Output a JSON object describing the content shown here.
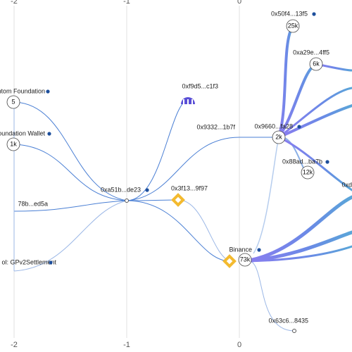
{
  "axis_top": [
    "-2",
    "-1",
    "0"
  ],
  "axis_bottom": [
    "-2",
    "-1",
    "0"
  ],
  "nodes": [
    {
      "label": "ntom Foundation",
      "badge": "5"
    },
    {
      "label": "oundation Wallet",
      "badge": "1k"
    },
    {
      "label": "78b...ed5a"
    },
    {
      "label": "ol: GPv2Settlement"
    },
    {
      "label": "0xa51b...de23"
    },
    {
      "label": "0xf9d5...c1f3"
    },
    {
      "label": "0x9332...1b7f"
    },
    {
      "label": "0x3f13...9f97"
    },
    {
      "label": "Binance",
      "badge": "73k"
    },
    {
      "label": "0x63c6...8435"
    },
    {
      "label": "0x50f4...13f5",
      "badge": "25k"
    },
    {
      "label": "0xa29e...4ff5",
      "badge": "6k"
    },
    {
      "label": "0x9660...fa28",
      "badge": "2k"
    },
    {
      "label": "0x88ad...ba7b",
      "badge": "12k"
    },
    {
      "label": "0xd"
    }
  ]
}
